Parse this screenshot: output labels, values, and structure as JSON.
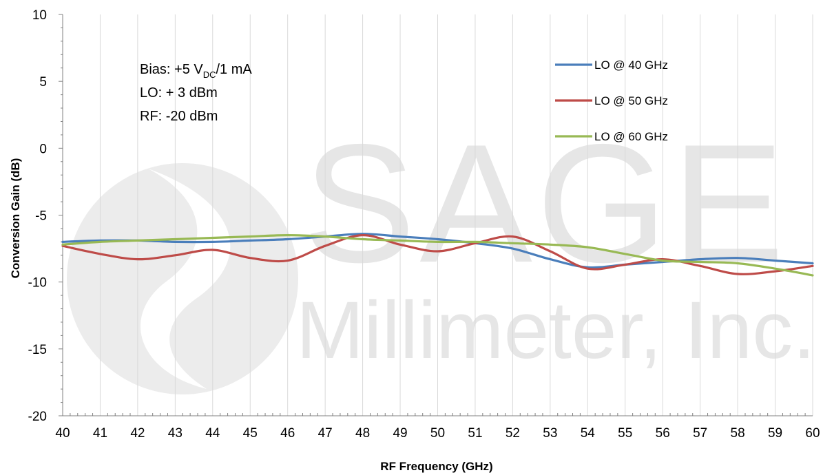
{
  "chart_data": {
    "type": "line",
    "xlabel": "RF Frequency (GHz)",
    "ylabel": "Conversion Gain (dB)",
    "xlim": [
      40,
      60
    ],
    "ylim": [
      -20,
      10
    ],
    "x_ticks": [
      40,
      41,
      42,
      43,
      44,
      45,
      46,
      47,
      48,
      49,
      50,
      51,
      52,
      53,
      54,
      55,
      56,
      57,
      58,
      59,
      60
    ],
    "y_ticks": [
      -20,
      -15,
      -10,
      -5,
      0,
      5,
      10
    ],
    "x_minor_step": 0.2,
    "y_minor_step": 1,
    "grid": "vertical-major",
    "legend_position": "top-right",
    "annotations": {
      "bias_prefix": "Bias: +5 V",
      "bias_sub": "DC",
      "bias_suffix": "/1 mA",
      "lo_power": "LO: + 3 dBm",
      "rf_power": "RF: -20 dBm"
    },
    "watermark": {
      "word": "SAGE",
      "tagline": "Millimeter, Inc."
    },
    "series": [
      {
        "name": "LO @ 40 GHz",
        "color": "#4a7ebb",
        "x": [
          40,
          41,
          42,
          43,
          44,
          45,
          46,
          47,
          48,
          49,
          50,
          51,
          52,
          53,
          54,
          55,
          56,
          57,
          58,
          59,
          60
        ],
        "y": [
          -7.0,
          -6.9,
          -6.9,
          -7.0,
          -7.0,
          -6.9,
          -6.8,
          -6.6,
          -6.4,
          -6.6,
          -6.8,
          -7.1,
          -7.5,
          -8.3,
          -8.9,
          -8.7,
          -8.5,
          -8.3,
          -8.2,
          -8.4,
          -8.6
        ]
      },
      {
        "name": "LO @ 50 GHz",
        "color": "#be4b48",
        "x": [
          40,
          41,
          42,
          43,
          44,
          45,
          46,
          47,
          48,
          49,
          50,
          51,
          52,
          53,
          54,
          55,
          56,
          57,
          58,
          59,
          60
        ],
        "y": [
          -7.3,
          -7.9,
          -8.3,
          -8.0,
          -7.6,
          -8.2,
          -8.4,
          -7.3,
          -6.5,
          -7.2,
          -7.7,
          -7.1,
          -6.6,
          -7.7,
          -9.0,
          -8.7,
          -8.3,
          -8.8,
          -9.4,
          -9.2,
          -8.8
        ]
      },
      {
        "name": "LO @ 60 GHz",
        "color": "#98b954",
        "x": [
          40,
          41,
          42,
          43,
          44,
          45,
          46,
          47,
          48,
          49,
          50,
          51,
          52,
          53,
          54,
          55,
          56,
          57,
          58,
          59,
          60
        ],
        "y": [
          -7.2,
          -7.0,
          -6.9,
          -6.8,
          -6.7,
          -6.6,
          -6.5,
          -6.6,
          -6.8,
          -6.9,
          -7.0,
          -7.0,
          -7.1,
          -7.2,
          -7.4,
          -7.9,
          -8.4,
          -8.5,
          -8.6,
          -9.0,
          -9.5
        ]
      }
    ]
  }
}
